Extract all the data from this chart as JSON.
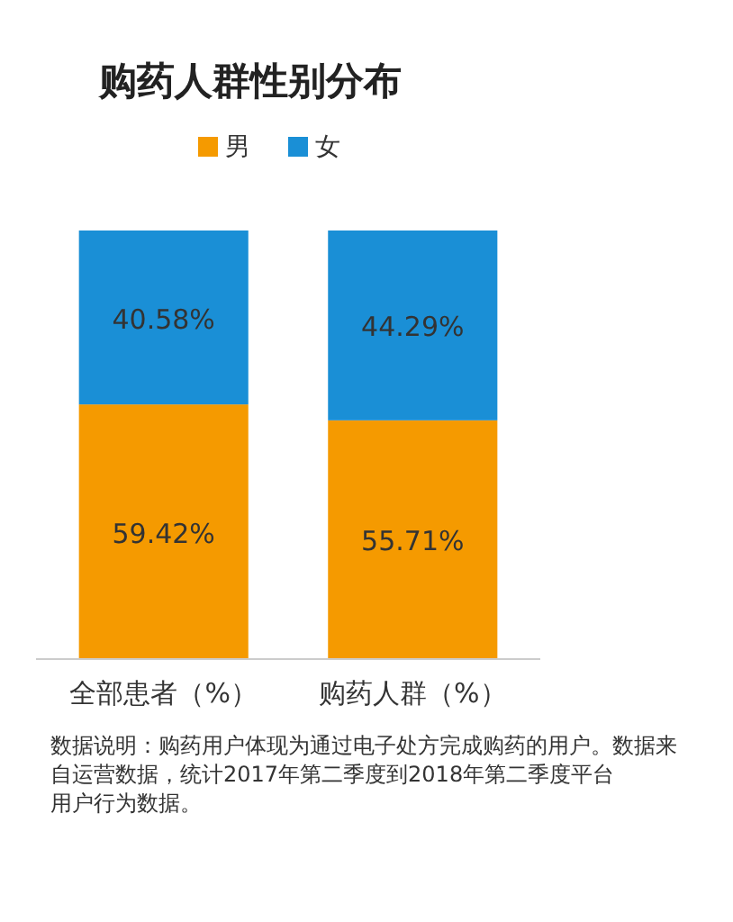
{
  "chart_data": {
    "type": "bar",
    "title": "购药人群性别分布",
    "categories": [
      "全部患者（%）",
      "购药人群（%）"
    ],
    "stacked": true,
    "legend": "top",
    "series": [
      {
        "name": "男",
        "color": "#f59a00",
        "values": [
          59.42,
          55.71
        ],
        "value_labels": [
          "59.42%",
          "55.71%"
        ]
      },
      {
        "name": "女",
        "color": "#1a8fd6",
        "values": [
          40.58,
          44.29
        ],
        "value_labels": [
          "40.58%",
          "44.29%"
        ]
      }
    ],
    "annotations": [
      "数据说明：购药用户体现为通过电子处方完成购药的用户。数据来自运营数据，统计2017年第二季度到2018年第二季度平台用户行为数据。"
    ]
  }
}
